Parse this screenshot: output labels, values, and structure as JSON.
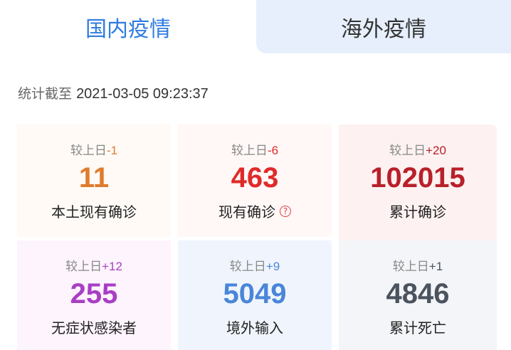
{
  "tabs": [
    {
      "label": "国内疫情",
      "active": true
    },
    {
      "label": "海外疫情",
      "active": false
    }
  ],
  "stamp": {
    "prefix": "统计截至",
    "time": "2021-03-05 09:23:37"
  },
  "delta_prefix": "较上日",
  "cards": [
    {
      "delta": "-1",
      "value": "11",
      "label": "本土现有确诊",
      "color": "#e07b2e",
      "bg": "#fffaf6"
    },
    {
      "delta": "-6",
      "value": "463",
      "label": "现有确诊",
      "color": "#e02a2a",
      "bg": "#fff8f7",
      "help_icon": "question-circle-icon"
    },
    {
      "delta": "+20",
      "value": "102015",
      "label": "累计确诊",
      "color": "#b8202a",
      "bg": "#fdf1f1"
    },
    {
      "delta": "+12",
      "value": "255",
      "label": "无症状感染者",
      "color": "#a83fc4",
      "bg": "#fdf4fd"
    },
    {
      "delta": "+9",
      "value": "5049",
      "label": "境外输入",
      "color": "#4a86d8",
      "bg": "#f0f5fd"
    },
    {
      "delta": "+1",
      "value": "4846",
      "label": "累计死亡",
      "color": "#4a535e",
      "bg": "#f3f5f8"
    }
  ]
}
